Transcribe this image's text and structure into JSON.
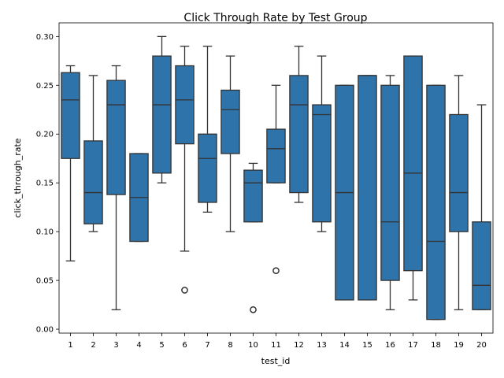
{
  "chart_data": {
    "type": "box",
    "title": "Click Through Rate by Test Group",
    "xlabel": "test_id",
    "ylabel": "click_through_rate",
    "categories": [
      "1",
      "2",
      "3",
      "4",
      "5",
      "6",
      "7",
      "8",
      "10",
      "11",
      "12",
      "13",
      "14",
      "15",
      "16",
      "17",
      "18",
      "19",
      "20"
    ],
    "ylim": [
      -0.004,
      0.314
    ],
    "yticks": [
      0.0,
      0.05,
      0.1,
      0.15,
      0.2,
      0.25,
      0.3
    ],
    "ytick_labels": [
      "0.00",
      "0.05",
      "0.10",
      "0.15",
      "0.20",
      "0.25",
      "0.30"
    ],
    "grid": false,
    "color": "#2f73ab",
    "edge_color": "#333333",
    "boxes": [
      {
        "q1": 0.175,
        "median": 0.235,
        "q3": 0.263,
        "whisker_low": 0.07,
        "whisker_high": 0.27,
        "outliers": []
      },
      {
        "q1": 0.108,
        "median": 0.14,
        "q3": 0.193,
        "whisker_low": 0.1,
        "whisker_high": 0.26,
        "outliers": []
      },
      {
        "q1": 0.138,
        "median": 0.23,
        "q3": 0.255,
        "whisker_low": 0.02,
        "whisker_high": 0.27,
        "outliers": []
      },
      {
        "q1": 0.09,
        "median": 0.135,
        "q3": 0.18,
        "whisker_low": 0.09,
        "whisker_high": 0.18,
        "outliers": []
      },
      {
        "q1": 0.16,
        "median": 0.23,
        "q3": 0.28,
        "whisker_low": 0.15,
        "whisker_high": 0.3,
        "outliers": []
      },
      {
        "q1": 0.19,
        "median": 0.235,
        "q3": 0.27,
        "whisker_low": 0.08,
        "whisker_high": 0.29,
        "outliers": [
          0.04
        ]
      },
      {
        "q1": 0.13,
        "median": 0.175,
        "q3": 0.2,
        "whisker_low": 0.12,
        "whisker_high": 0.29,
        "outliers": []
      },
      {
        "q1": 0.18,
        "median": 0.225,
        "q3": 0.245,
        "whisker_low": 0.1,
        "whisker_high": 0.28,
        "outliers": []
      },
      {
        "q1": 0.11,
        "median": 0.15,
        "q3": 0.163,
        "whisker_low": 0.11,
        "whisker_high": 0.17,
        "outliers": [
          0.02
        ]
      },
      {
        "q1": 0.15,
        "median": 0.185,
        "q3": 0.205,
        "whisker_low": 0.15,
        "whisker_high": 0.25,
        "outliers": [
          0.06
        ]
      },
      {
        "q1": 0.14,
        "median": 0.23,
        "q3": 0.26,
        "whisker_low": 0.13,
        "whisker_high": 0.29,
        "outliers": []
      },
      {
        "q1": 0.11,
        "median": 0.22,
        "q3": 0.23,
        "whisker_low": 0.1,
        "whisker_high": 0.28,
        "outliers": []
      },
      {
        "q1": 0.03,
        "median": 0.14,
        "q3": 0.25,
        "whisker_low": 0.03,
        "whisker_high": 0.25,
        "outliers": []
      },
      {
        "q1": 0.03,
        "median": 0.26,
        "q3": 0.26,
        "whisker_low": 0.03,
        "whisker_high": 0.26,
        "outliers": []
      },
      {
        "q1": 0.05,
        "median": 0.11,
        "q3": 0.25,
        "whisker_low": 0.02,
        "whisker_high": 0.26,
        "outliers": []
      },
      {
        "q1": 0.06,
        "median": 0.16,
        "q3": 0.28,
        "whisker_low": 0.03,
        "whisker_high": 0.28,
        "outliers": []
      },
      {
        "q1": 0.01,
        "median": 0.09,
        "q3": 0.25,
        "whisker_low": 0.01,
        "whisker_high": 0.25,
        "outliers": []
      },
      {
        "q1": 0.1,
        "median": 0.14,
        "q3": 0.22,
        "whisker_low": 0.02,
        "whisker_high": 0.26,
        "outliers": []
      },
      {
        "q1": 0.02,
        "median": 0.045,
        "q3": 0.11,
        "whisker_low": 0.02,
        "whisker_high": 0.23,
        "outliers": []
      }
    ]
  }
}
